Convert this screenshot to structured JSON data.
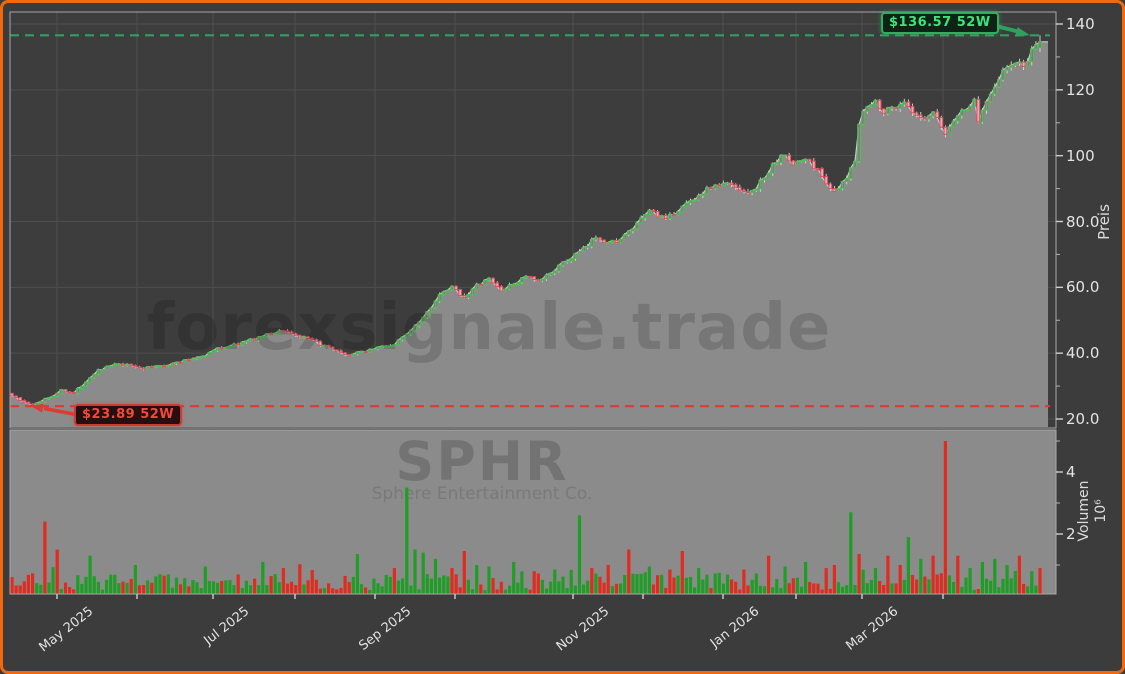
{
  "watermarks": {
    "main": "forexsignale.trade",
    "symbol": "SPHR",
    "company": "Sphere Entertainment Co."
  },
  "chart_data": {
    "type": "candlestick",
    "symbol": "SPHR",
    "company": "Sphere Entertainment Co.",
    "price_axis": {
      "label": "Preis",
      "tick_values": [
        20,
        40,
        60,
        80,
        100,
        120,
        140
      ],
      "tick_labels": [
        "20.0",
        "40.0",
        "60.0",
        "80.0",
        "100",
        "120",
        "140"
      ],
      "minor_ticks": [
        30,
        50,
        70,
        90,
        110,
        130
      ],
      "range": [
        18.5,
        141.5
      ]
    },
    "volume_axis": {
      "label": "Volumen",
      "unit": "10⁶",
      "tick_values": [
        2,
        4
      ],
      "tick_labels": [
        "2",
        "4"
      ],
      "minor_ticks": [
        1,
        3,
        5
      ],
      "range": [
        0,
        5.3
      ]
    },
    "x_axis": {
      "major_labels": [
        "May 2025",
        "Jul 2025",
        "Sep 2025",
        "Nov 2025",
        "Jan 2026",
        "Mar 2026"
      ]
    },
    "lines": {
      "high_52w": 136.57,
      "low_52w": 23.89
    },
    "annotations": {
      "high": {
        "text": "$136.57 52W",
        "price": 136.57
      },
      "low": {
        "text": "$23.89 52W",
        "price": 23.89
      }
    },
    "n_days": 251,
    "price_waypoints": [
      [
        0,
        27.2
      ],
      [
        2,
        25.6
      ],
      [
        5,
        24.1
      ],
      [
        8,
        26.2
      ],
      [
        11,
        27.6
      ],
      [
        12,
        29.0
      ],
      [
        15,
        27.8
      ],
      [
        18,
        31.5
      ],
      [
        21,
        35.0
      ],
      [
        25,
        36.5
      ],
      [
        29,
        36.2
      ],
      [
        32,
        35.4
      ],
      [
        36,
        36.2
      ],
      [
        39,
        36.8
      ],
      [
        43,
        38.0
      ],
      [
        47,
        39.5
      ],
      [
        50,
        41.4
      ],
      [
        55,
        42.8
      ],
      [
        61,
        45.2
      ],
      [
        66,
        47.0
      ],
      [
        69,
        45.4
      ],
      [
        73,
        43.8
      ],
      [
        77,
        41.5
      ],
      [
        81,
        39.2
      ],
      [
        84,
        40.0
      ],
      [
        89,
        41.8
      ],
      [
        93,
        42.6
      ],
      [
        96,
        46.0
      ],
      [
        100,
        51.0
      ],
      [
        104,
        57.5
      ],
      [
        107,
        60.0
      ],
      [
        110,
        57.0
      ],
      [
        113,
        60.5
      ],
      [
        116,
        62.5
      ],
      [
        119,
        59.0
      ],
      [
        122,
        61.0
      ],
      [
        125,
        63.5
      ],
      [
        128,
        61.5
      ],
      [
        132,
        65.5
      ],
      [
        136,
        69.0
      ],
      [
        140,
        72.5
      ],
      [
        142,
        75.5
      ],
      [
        145,
        73.5
      ],
      [
        148,
        74.5
      ],
      [
        152,
        79.0
      ],
      [
        155,
        83.5
      ],
      [
        159,
        80.5
      ],
      [
        163,
        84.5
      ],
      [
        167,
        88.0
      ],
      [
        170,
        90.5
      ],
      [
        174,
        91.5
      ],
      [
        178,
        89.5
      ],
      [
        180,
        89.0
      ],
      [
        184,
        95.0
      ],
      [
        187,
        100.5
      ],
      [
        190,
        97.5
      ],
      [
        193,
        99.0
      ],
      [
        196,
        95.5
      ],
      [
        200,
        88.5
      ],
      [
        203,
        93.0
      ],
      [
        205,
        99.0
      ],
      [
        206,
        110.0
      ],
      [
        207,
        113.5
      ],
      [
        210,
        116.5
      ],
      [
        212,
        113.5
      ],
      [
        215,
        115.0
      ],
      [
        217,
        116.5
      ],
      [
        219,
        112.5
      ],
      [
        222,
        110.5
      ],
      [
        224,
        113.0
      ],
      [
        227,
        106.5
      ],
      [
        229,
        111.0
      ],
      [
        232,
        114.5
      ],
      [
        234,
        116.5
      ],
      [
        235,
        110.5
      ],
      [
        237,
        117.0
      ],
      [
        239,
        121.5
      ],
      [
        241,
        125.5
      ],
      [
        244,
        128.5
      ],
      [
        246,
        127.0
      ],
      [
        248,
        131.5
      ],
      [
        250,
        134.0
      ]
    ],
    "volume_spikes": [
      [
        8,
        2.4,
        "r"
      ],
      [
        11,
        1.5,
        "r"
      ],
      [
        19,
        1.3,
        "g"
      ],
      [
        30,
        1.0,
        "g"
      ],
      [
        47,
        0.95,
        "g"
      ],
      [
        61,
        1.1,
        "g"
      ],
      [
        66,
        0.9,
        "r"
      ],
      [
        84,
        1.35,
        "g"
      ],
      [
        93,
        0.9,
        "r"
      ],
      [
        96,
        3.5,
        "g"
      ],
      [
        98,
        1.5,
        "g"
      ],
      [
        100,
        1.4,
        "g"
      ],
      [
        103,
        1.2,
        "g"
      ],
      [
        107,
        0.9,
        "r"
      ],
      [
        110,
        1.45,
        "r"
      ],
      [
        113,
        1.0,
        "g"
      ],
      [
        116,
        0.95,
        "g"
      ],
      [
        122,
        1.1,
        "g"
      ],
      [
        127,
        0.8,
        "r"
      ],
      [
        132,
        0.85,
        "g"
      ],
      [
        138,
        2.6,
        "g"
      ],
      [
        141,
        0.9,
        "r"
      ],
      [
        145,
        1.0,
        "r"
      ],
      [
        150,
        1.5,
        "r"
      ],
      [
        155,
        0.95,
        "g"
      ],
      [
        160,
        0.85,
        "r"
      ],
      [
        163,
        1.45,
        "r"
      ],
      [
        167,
        0.9,
        "g"
      ],
      [
        172,
        0.75,
        "g"
      ],
      [
        178,
        0.85,
        "r"
      ],
      [
        184,
        1.3,
        "r"
      ],
      [
        188,
        0.95,
        "g"
      ],
      [
        193,
        1.1,
        "g"
      ],
      [
        198,
        0.9,
        "r"
      ],
      [
        200,
        1.0,
        "r"
      ],
      [
        204,
        2.7,
        "g"
      ],
      [
        206,
        1.35,
        "r"
      ],
      [
        210,
        0.9,
        "g"
      ],
      [
        213,
        1.3,
        "r"
      ],
      [
        216,
        1.0,
        "r"
      ],
      [
        218,
        1.9,
        "g"
      ],
      [
        221,
        1.2,
        "g"
      ],
      [
        224,
        1.3,
        "r"
      ],
      [
        227,
        5.0,
        "r"
      ],
      [
        230,
        1.3,
        "r"
      ],
      [
        233,
        0.9,
        "g"
      ],
      [
        236,
        1.1,
        "g"
      ],
      [
        239,
        1.2,
        "g"
      ],
      [
        242,
        1.0,
        "g"
      ],
      [
        245,
        1.3,
        "r"
      ],
      [
        248,
        0.8,
        "g"
      ],
      [
        250,
        0.9,
        "r"
      ]
    ],
    "colors": {
      "border": "#f2690d",
      "background": "#3c3c3c",
      "panel": "#3d3d3d",
      "grid": "#4e4e4e",
      "area_fill": "#8b8b8b",
      "close_line": "#c9c9c9",
      "candle_up": "#4fbf53",
      "candle_down": "#d94f5c",
      "candle_down_fill": "#eba7b3",
      "wick": "#d9d9d9",
      "vol_up": "#1f9e25",
      "vol_down": "#e02b1e",
      "line_high": "#2fa05f",
      "line_low": "#dd3b33",
      "spine": "#a8a8a8",
      "tick_text": "#e3e3e3"
    }
  }
}
